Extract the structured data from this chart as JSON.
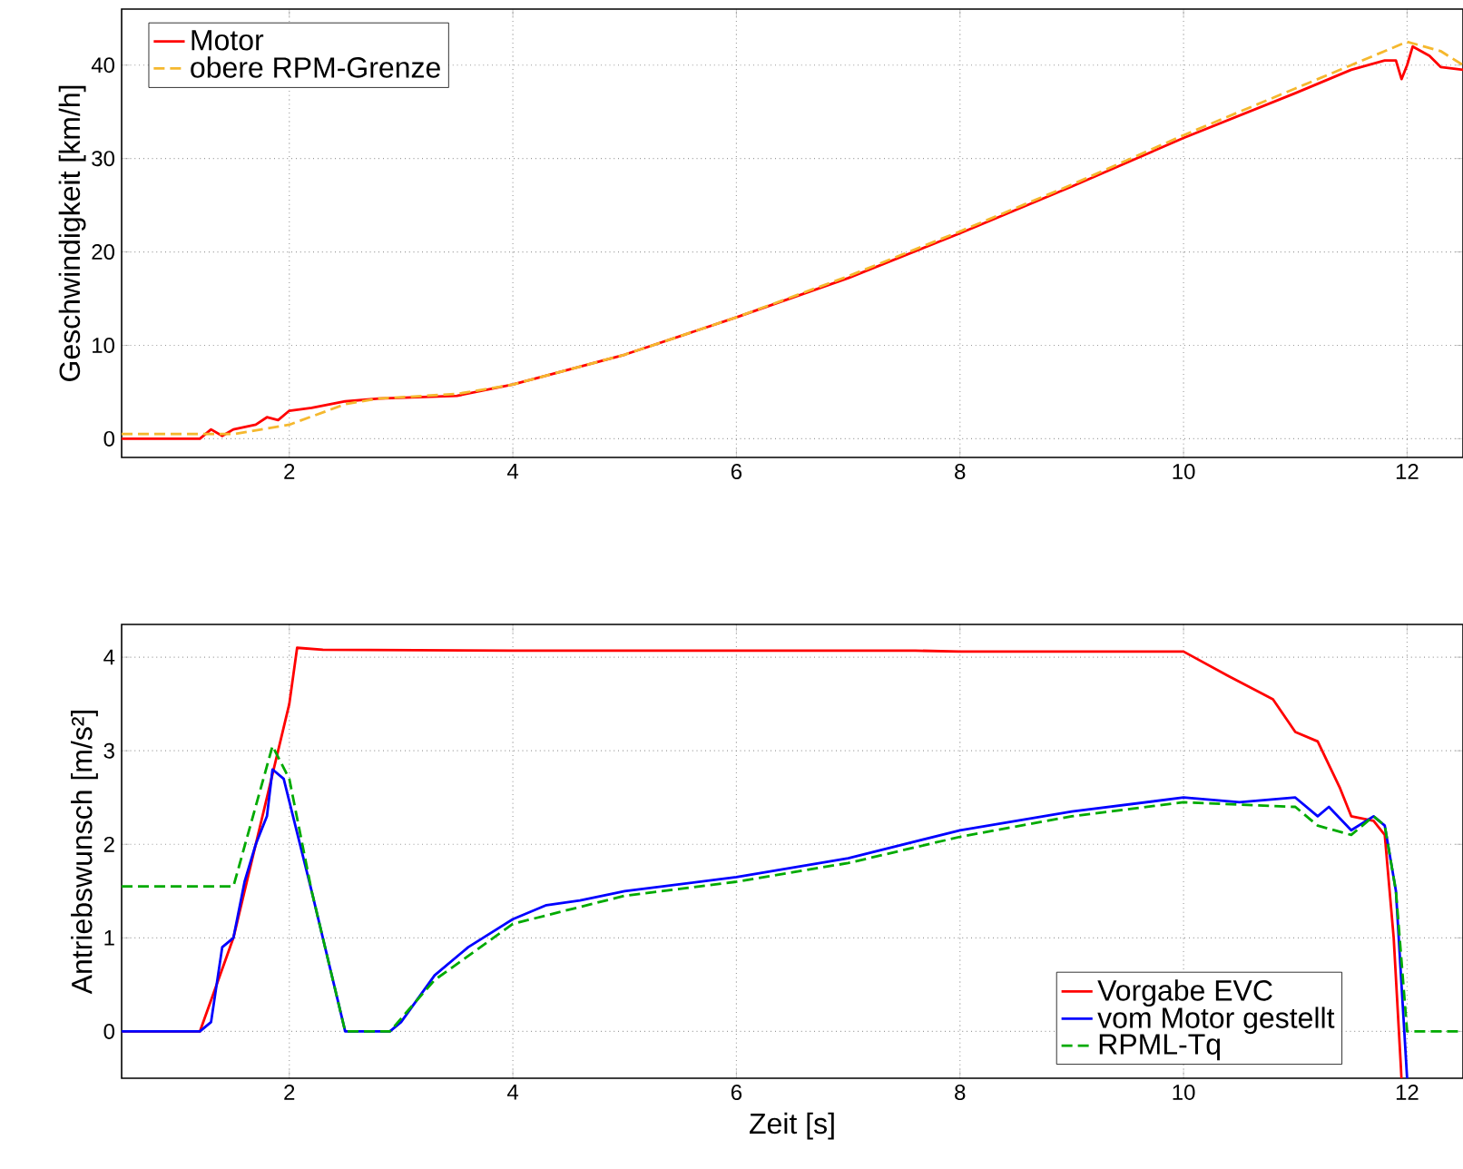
{
  "chart_data": [
    {
      "type": "line",
      "ylabel": "Geschwindigkeit [km/h]",
      "xlim": [
        0.5,
        12.5
      ],
      "ylim": [
        -2,
        46
      ],
      "xticks": [
        2,
        4,
        6,
        8,
        10,
        12
      ],
      "yticks": [
        0,
        10,
        20,
        30,
        40
      ],
      "grid": true,
      "legend": "top left",
      "series": [
        {
          "name": "Motor",
          "color": "#ff0000",
          "line_style": "solid",
          "x": [
            0.5,
            1.2,
            1.3,
            1.4,
            1.5,
            1.7,
            1.8,
            1.9,
            2.0,
            2.2,
            2.5,
            2.8,
            3.5,
            4,
            5,
            6,
            7,
            8,
            9,
            10,
            11,
            11.5,
            11.8,
            11.9,
            11.95,
            12.0,
            12.05,
            12.2,
            12.3,
            12.5
          ],
          "values": [
            0,
            0,
            1,
            0.3,
            1,
            1.5,
            2.3,
            2,
            3,
            3.3,
            4,
            4.3,
            4.6,
            5.8,
            9,
            13,
            17.2,
            22,
            27,
            32.2,
            37,
            39.5,
            40.5,
            40.5,
            38.5,
            40,
            42,
            41,
            39.8,
            39.5
          ]
        },
        {
          "name": "obere RPM-Grenze",
          "color": "#f5b82e",
          "line_style": "dashed",
          "x": [
            0.5,
            1.5,
            2,
            2.5,
            2.8,
            3.5,
            4,
            5,
            6,
            7,
            8,
            9,
            10,
            11,
            11.5,
            12,
            12.3,
            12.5
          ],
          "values": [
            0.5,
            0.5,
            1.5,
            3.7,
            4.3,
            4.8,
            5.8,
            9,
            13,
            17.4,
            22.2,
            27.2,
            32.5,
            37.5,
            40,
            42.5,
            41.5,
            40
          ]
        }
      ]
    },
    {
      "type": "line",
      "xlabel": "Zeit [s]",
      "ylabel": "Antriebswunsch [m/s²]",
      "xlim": [
        0.5,
        12.5
      ],
      "ylim": [
        -0.5,
        4.35
      ],
      "xticks": [
        2,
        4,
        6,
        8,
        10,
        12
      ],
      "yticks": [
        0,
        1,
        2,
        3,
        4
      ],
      "grid": true,
      "legend": "bottom right",
      "series": [
        {
          "name": "Vorgabe EVC",
          "color": "#ff0000",
          "line_style": "solid",
          "x": [
            0.5,
            1.2,
            1.5,
            1.7,
            1.9,
            2.0,
            2.07,
            2.3,
            4,
            7.6,
            8,
            10,
            10.4,
            10.8,
            11.0,
            11.2,
            11.4,
            11.5,
            11.7,
            11.8,
            11.88,
            11.95
          ],
          "values": [
            0,
            0,
            1,
            2,
            3,
            3.5,
            4.1,
            4.08,
            4.07,
            4.07,
            4.06,
            4.06,
            3.8,
            3.55,
            3.2,
            3.1,
            2.6,
            2.3,
            2.25,
            2.1,
            1,
            -0.5
          ]
        },
        {
          "name": "vom Motor gestellt",
          "color": "#0000ff",
          "line_style": "solid",
          "x": [
            0.5,
            1.2,
            1.3,
            1.4,
            1.5,
            1.6,
            1.7,
            1.8,
            1.85,
            1.95,
            2.2,
            2.4,
            2.5,
            2.9,
            3.0,
            3.3,
            3.6,
            4,
            4.3,
            4.6,
            5,
            6,
            7,
            8,
            9,
            10,
            10.5,
            11.0,
            11.2,
            11.3,
            11.5,
            11.7,
            11.8,
            11.9,
            12.0
          ],
          "values": [
            0,
            0,
            0.1,
            0.9,
            1,
            1.6,
            2.0,
            2.3,
            2.8,
            2.7,
            1.5,
            0.5,
            0,
            0,
            0.1,
            0.6,
            0.9,
            1.2,
            1.35,
            1.4,
            1.5,
            1.65,
            1.85,
            2.15,
            2.35,
            2.5,
            2.45,
            2.5,
            2.3,
            2.4,
            2.15,
            2.3,
            2.2,
            1.5,
            -0.5
          ]
        },
        {
          "name": "RPML-Tq",
          "color": "#00aa00",
          "line_style": "dashed",
          "x": [
            0.5,
            1.5,
            1.85,
            2.0,
            2.2,
            2.5,
            2.9,
            3.3,
            4,
            5,
            6,
            7,
            8,
            9,
            10,
            11,
            11.2,
            11.5,
            11.7,
            11.8,
            11.9,
            12.0,
            12.5
          ],
          "values": [
            1.55,
            1.55,
            3.05,
            2.7,
            1.5,
            0,
            0,
            0.55,
            1.15,
            1.45,
            1.6,
            1.8,
            2.08,
            2.3,
            2.45,
            2.4,
            2.2,
            2.1,
            2.3,
            2.2,
            1.5,
            0,
            0
          ]
        }
      ]
    }
  ]
}
